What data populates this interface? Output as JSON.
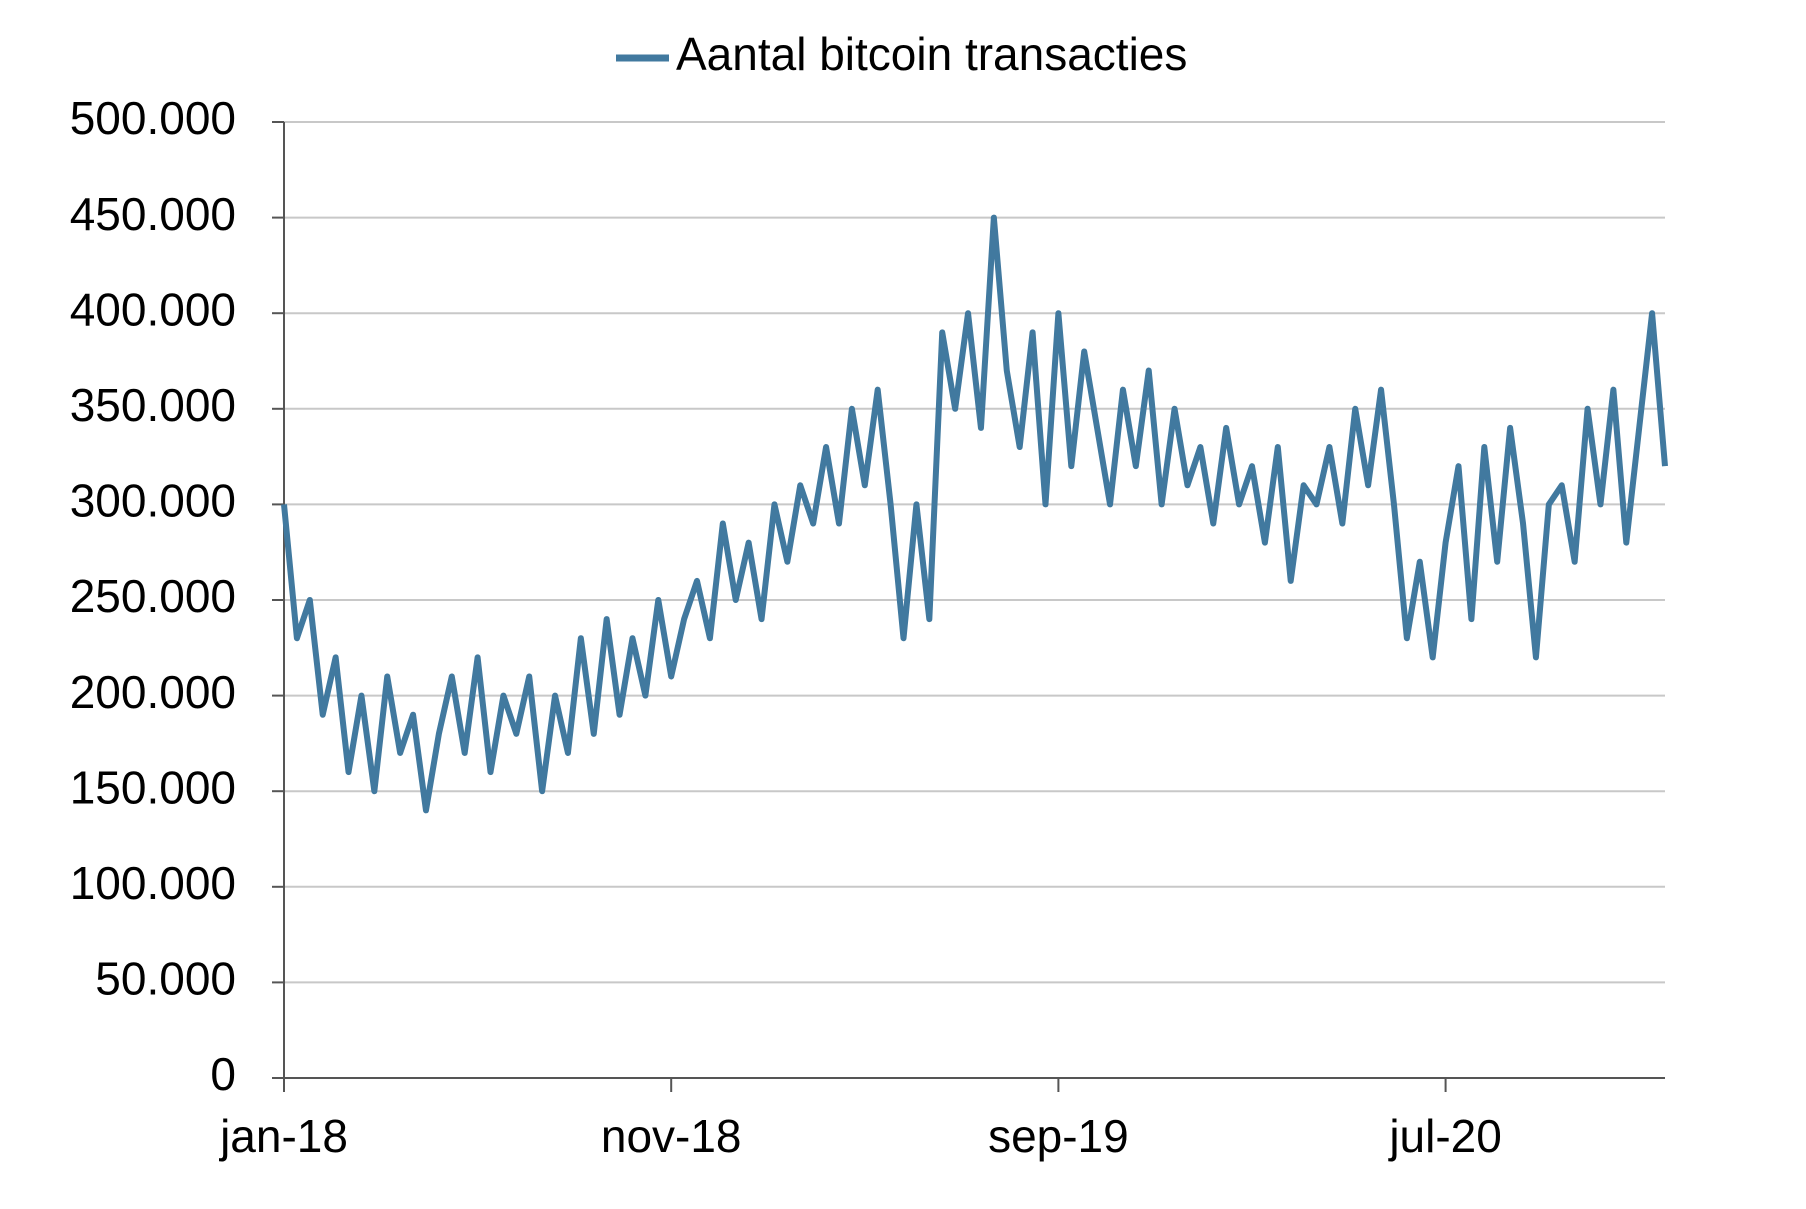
{
  "chart_data": {
    "type": "line",
    "categories": [
      "jan-18",
      null,
      null,
      null,
      null,
      null,
      null,
      null,
      null,
      null,
      null,
      null,
      null,
      null,
      null,
      null,
      null,
      null,
      null,
      null,
      null,
      null,
      null,
      null,
      null,
      null,
      null,
      null,
      null,
      null,
      "nov-18",
      null,
      null,
      null,
      null,
      null,
      null,
      null,
      null,
      null,
      null,
      null,
      null,
      null,
      null,
      null,
      null,
      null,
      null,
      null,
      null,
      null,
      null,
      null,
      null,
      null,
      null,
      null,
      null,
      null,
      "sep-19",
      null,
      null,
      null,
      null,
      null,
      null,
      null,
      null,
      null,
      null,
      null,
      null,
      null,
      null,
      null,
      null,
      null,
      null,
      null,
      null,
      null,
      null,
      null,
      null,
      null,
      null,
      null,
      null,
      null,
      "jul-20",
      null,
      null,
      null,
      null,
      null,
      null,
      null,
      null,
      null,
      null,
      null,
      null,
      null,
      null,
      null,
      null,
      null
    ],
    "series": [
      {
        "name": "Aantal bitcoin transacties",
        "color": "#41799f",
        "values": [
          300000,
          230000,
          250000,
          190000,
          220000,
          160000,
          200000,
          150000,
          210000,
          170000,
          190000,
          140000,
          180000,
          210000,
          170000,
          220000,
          160000,
          200000,
          180000,
          210000,
          150000,
          200000,
          170000,
          230000,
          180000,
          240000,
          190000,
          230000,
          200000,
          250000,
          210000,
          240000,
          260000,
          230000,
          290000,
          250000,
          280000,
          240000,
          300000,
          270000,
          310000,
          290000,
          330000,
          290000,
          350000,
          310000,
          360000,
          300000,
          230000,
          300000,
          240000,
          390000,
          350000,
          400000,
          340000,
          450000,
          370000,
          330000,
          390000,
          300000,
          400000,
          320000,
          380000,
          340000,
          300000,
          360000,
          320000,
          370000,
          300000,
          350000,
          310000,
          330000,
          290000,
          340000,
          300000,
          320000,
          280000,
          330000,
          260000,
          310000,
          300000,
          330000,
          290000,
          350000,
          310000,
          360000,
          300000,
          230000,
          270000,
          220000,
          280000,
          320000,
          240000,
          330000,
          270000,
          340000,
          290000,
          220000,
          300000,
          310000,
          270000,
          350000,
          300000,
          360000,
          280000,
          340000,
          400000,
          320000
        ]
      }
    ],
    "ylim": [
      0,
      500000
    ],
    "yticks": [
      0,
      {
        "value": 50000,
        "label": "50.000"
      },
      {
        "value": 100000,
        "label": "100.000"
      },
      {
        "value": 150000,
        "label": "150.000"
      },
      {
        "value": 200000,
        "label": "200.000"
      },
      {
        "value": 250000,
        "label": "250.000"
      },
      {
        "value": 300000,
        "label": "300.000"
      },
      {
        "value": 350000,
        "label": "350.000"
      },
      {
        "value": 400000,
        "label": "400.000"
      },
      {
        "value": 450000,
        "label": "450.000"
      },
      {
        "value": 500000,
        "label": "500.000"
      }
    ],
    "grid": true,
    "legend": "top"
  }
}
